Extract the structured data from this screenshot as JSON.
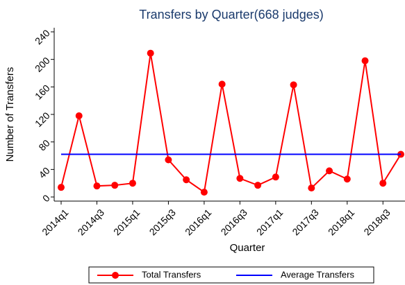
{
  "chart_data": {
    "type": "line",
    "title": "Transfers by Quarter(668 judges)",
    "x_label": "Quarter",
    "y_label": "Number of Transfers",
    "categories": [
      "2014q1",
      null,
      "2014q3",
      null,
      "2015q1",
      null,
      "2015q3",
      null,
      "2016q1",
      null,
      "2016q3",
      null,
      "2017q1",
      null,
      "2017q3",
      null,
      "2018q1",
      null,
      "2018q3",
      null
    ],
    "series": [
      {
        "name": "Total Transfers",
        "color": "#ff0000",
        "marker": true,
        "values": [
          14,
          118,
          16,
          17,
          20,
          209,
          54,
          25,
          7,
          164,
          27,
          17,
          29,
          163,
          13,
          38,
          26,
          198,
          20,
          62
        ]
      },
      {
        "name": "Average Transfers",
        "color": "#0000ff",
        "marker": false,
        "values": [
          62,
          62,
          62,
          62,
          62,
          62,
          62,
          62,
          62,
          62,
          62,
          62,
          62,
          62,
          62,
          62,
          62,
          62,
          62,
          62
        ]
      }
    ],
    "ylim": [
      -6,
      246
    ],
    "yticks": [
      0,
      40,
      80,
      120,
      160,
      200,
      240
    ],
    "grid": false
  }
}
